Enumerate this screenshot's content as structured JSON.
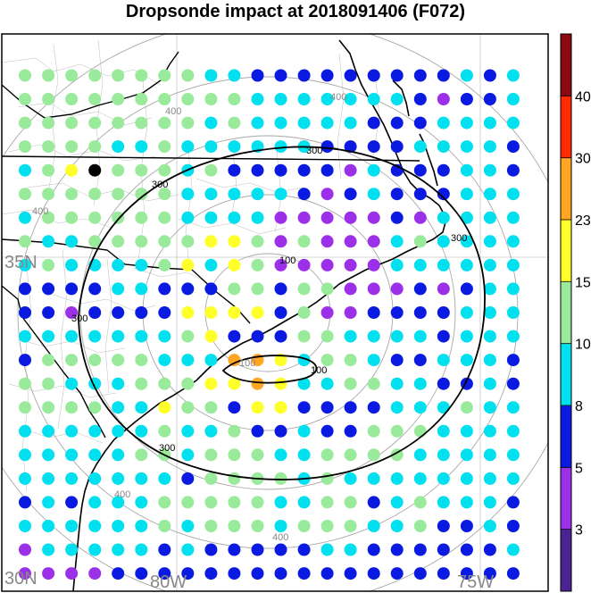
{
  "title": "Dropsonde impact at 2018091406 (F072)",
  "lat_labels": [
    "35N",
    "30N"
  ],
  "lon_labels": [
    "80W",
    "75W"
  ],
  "range_ring_labels": [
    "100",
    "400",
    "400",
    "400",
    "400",
    "400"
  ],
  "contour_labels": [
    "300",
    "300",
    "300",
    "300",
    "300",
    "100",
    "100"
  ],
  "colorbar": {
    "tick_labels": [
      "3",
      "5",
      "8",
      "10",
      "15",
      "23",
      "30",
      "40"
    ],
    "colors": [
      "#4b2491",
      "#9b30e8",
      "#0a1ae0",
      "#00e0ef",
      "#99ea9a",
      "#ffff2a",
      "#ffa622",
      "#ff2a00",
      "#8b0a10"
    ]
  },
  "colors": {
    "coast": "#000000",
    "county": "#bbbbbb",
    "ring": "#a8a8a8",
    "gridline": "#c8c8c8"
  },
  "chart_data": {
    "type": "map-dots",
    "title": "Dropsonde impact at 2018091406 (F072)",
    "lat_range": [
      29.8,
      39.2
    ],
    "lon_range": [
      -82.6,
      -73.2
    ],
    "levels": [
      3,
      5,
      8,
      10,
      15,
      23,
      30,
      40
    ],
    "dot_lats": [
      38.5,
      38.1,
      37.7,
      37.3,
      36.9,
      36.5,
      36.1,
      35.7,
      35.3,
      34.9,
      34.5,
      34.1,
      33.7,
      33.3,
      32.9,
      32.5,
      32.1,
      31.7,
      31.3,
      30.9,
      30.5,
      30.1
    ],
    "dot_lons": [
      -82.2,
      -81.8,
      -81.4,
      -81.0,
      -80.6,
      -80.2,
      -79.8,
      -79.4,
      -79.0,
      -78.6,
      -78.2,
      -77.8,
      -77.4,
      -77.0,
      -76.6,
      -76.2,
      -75.8,
      -75.4,
      -75.0,
      -74.6,
      -74.2,
      -73.8
    ],
    "dot_rows": [
      "4444444433222222222323",
      "4444444444333333321223",
      "4444444434333332223333",
      "4444334333333222233332",
      "3459444342222213222332",
      "4444444333332123222333",
      "3444444333311111213333",
      "4334444455414111343333",
      "3433334535411111333333",
      "2222332224424411121233",
      "2212222555524112222333",
      "3333333452224433332333",
      "2444443336653443223332",
      "4433344455653344332232",
      "4444335442552222333433",
      "3333334334223224443333",
      "3333344344433444433333",
      "3333333244443433333333",
      "2323334444433442343332",
      "3333334344434443342232",
      "1333332322222332222223",
      "1111222222222222222222"
    ],
    "overlay_contours": [
      {
        "label": "300",
        "shape": "ellipse",
        "center_lon": -78.6,
        "center_lat": 34.3,
        "radius_lon": 5.2,
        "radius_lat": 4.8
      },
      {
        "label": "100",
        "shape": "ellipse",
        "center_lon": -78.7,
        "center_lat": 33.6,
        "radius_lon": 0.9,
        "radius_lat": 0.35
      }
    ]
  }
}
